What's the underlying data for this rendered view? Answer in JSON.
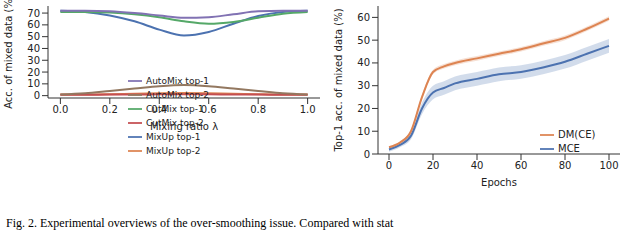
{
  "chart_data": [
    {
      "type": "line",
      "x": [
        0,
        0.1,
        0.2,
        0.3,
        0.4,
        0.5,
        0.6,
        0.7,
        0.8,
        0.9,
        1.0
      ],
      "xlabel": "Mixing ratio λ",
      "ylabel": "Acc. of mixed data (%)",
      "xlim": [
        -0.05,
        1.05
      ],
      "xticks": [
        {
          "value": 0,
          "label": "0.0"
        },
        {
          "value": 0.2,
          "label": "0.2"
        },
        {
          "value": 0.4,
          "label": "0.4"
        },
        {
          "value": 0.6,
          "label": "0.6"
        },
        {
          "value": 0.8,
          "label": "0.8"
        },
        {
          "value": 1.0,
          "label": "1.0"
        }
      ],
      "ylim": [
        -2,
        76
      ],
      "yticks": [
        0,
        10,
        20,
        30,
        40,
        50,
        60,
        70
      ],
      "legend": "center",
      "series": [
        {
          "name": "MixUp top-1",
          "color": "#4c72b0",
          "values": [
            72,
            71,
            68,
            63,
            56,
            51,
            54,
            61,
            67.5,
            71,
            72
          ]
        },
        {
          "name": "MixUp top-2",
          "color": "#dd8452",
          "values": [
            1,
            1,
            1.2,
            1.5,
            2,
            2.2,
            2,
            1.5,
            1.2,
            1,
            1
          ]
        },
        {
          "name": "CutMix top-1",
          "color": "#55a868",
          "values": [
            71,
            71,
            70.5,
            69,
            66.5,
            63,
            61,
            62.5,
            66,
            69.5,
            71
          ]
        },
        {
          "name": "CutMix top-2",
          "color": "#c44e52",
          "values": [
            0.8,
            0.8,
            0.9,
            1,
            1.1,
            1.2,
            1.1,
            1,
            0.9,
            0.8,
            0.8
          ]
        },
        {
          "name": "AutoMix top-1",
          "color": "#8172b3",
          "values": [
            72,
            72,
            71.5,
            70,
            68,
            66,
            66.5,
            69,
            71.5,
            72,
            72
          ]
        },
        {
          "name": "AutoMix top-2",
          "color": "#937860",
          "values": [
            1,
            2,
            4,
            6,
            8,
            9,
            8,
            6,
            4,
            2,
            1
          ]
        }
      ]
    },
    {
      "type": "line",
      "x": [
        0,
        5,
        10,
        15,
        20,
        25,
        30,
        40,
        50,
        60,
        70,
        80,
        90,
        100
      ],
      "xlabel": "Epochs",
      "ylabel": "Top-1 acc. of mixed data (%)",
      "xlim": [
        -5,
        105
      ],
      "xticks": [
        0,
        20,
        40,
        60,
        80,
        100
      ],
      "ylim": [
        0,
        65
      ],
      "yticks": [
        0,
        10,
        20,
        30,
        40,
        50,
        60
      ],
      "legend": "lower right",
      "series": [
        {
          "name": "MCE",
          "color": "#4c72b0",
          "values": [
            2,
            4,
            8,
            20,
            27,
            29,
            31,
            33,
            35,
            36,
            38,
            40.5,
            44,
            47.5
          ],
          "error": [
            1,
            1,
            1.5,
            2.5,
            3,
            3,
            3,
            3,
            3,
            3,
            3,
            3,
            3,
            3
          ]
        },
        {
          "name": "DM(CE)",
          "color": "#dd8452",
          "values": [
            3,
            5,
            10,
            25,
            36,
            38.5,
            40,
            42,
            44,
            46,
            48.5,
            51,
            55,
            59.5
          ],
          "error": [
            0.5,
            0.5,
            0.8,
            1,
            1,
            1,
            1,
            1,
            1,
            1,
            1,
            1,
            1,
            1
          ]
        }
      ]
    }
  ],
  "caption": "Fig. 2. Experimental overviews of the over-smoothing issue. Compared with stat"
}
